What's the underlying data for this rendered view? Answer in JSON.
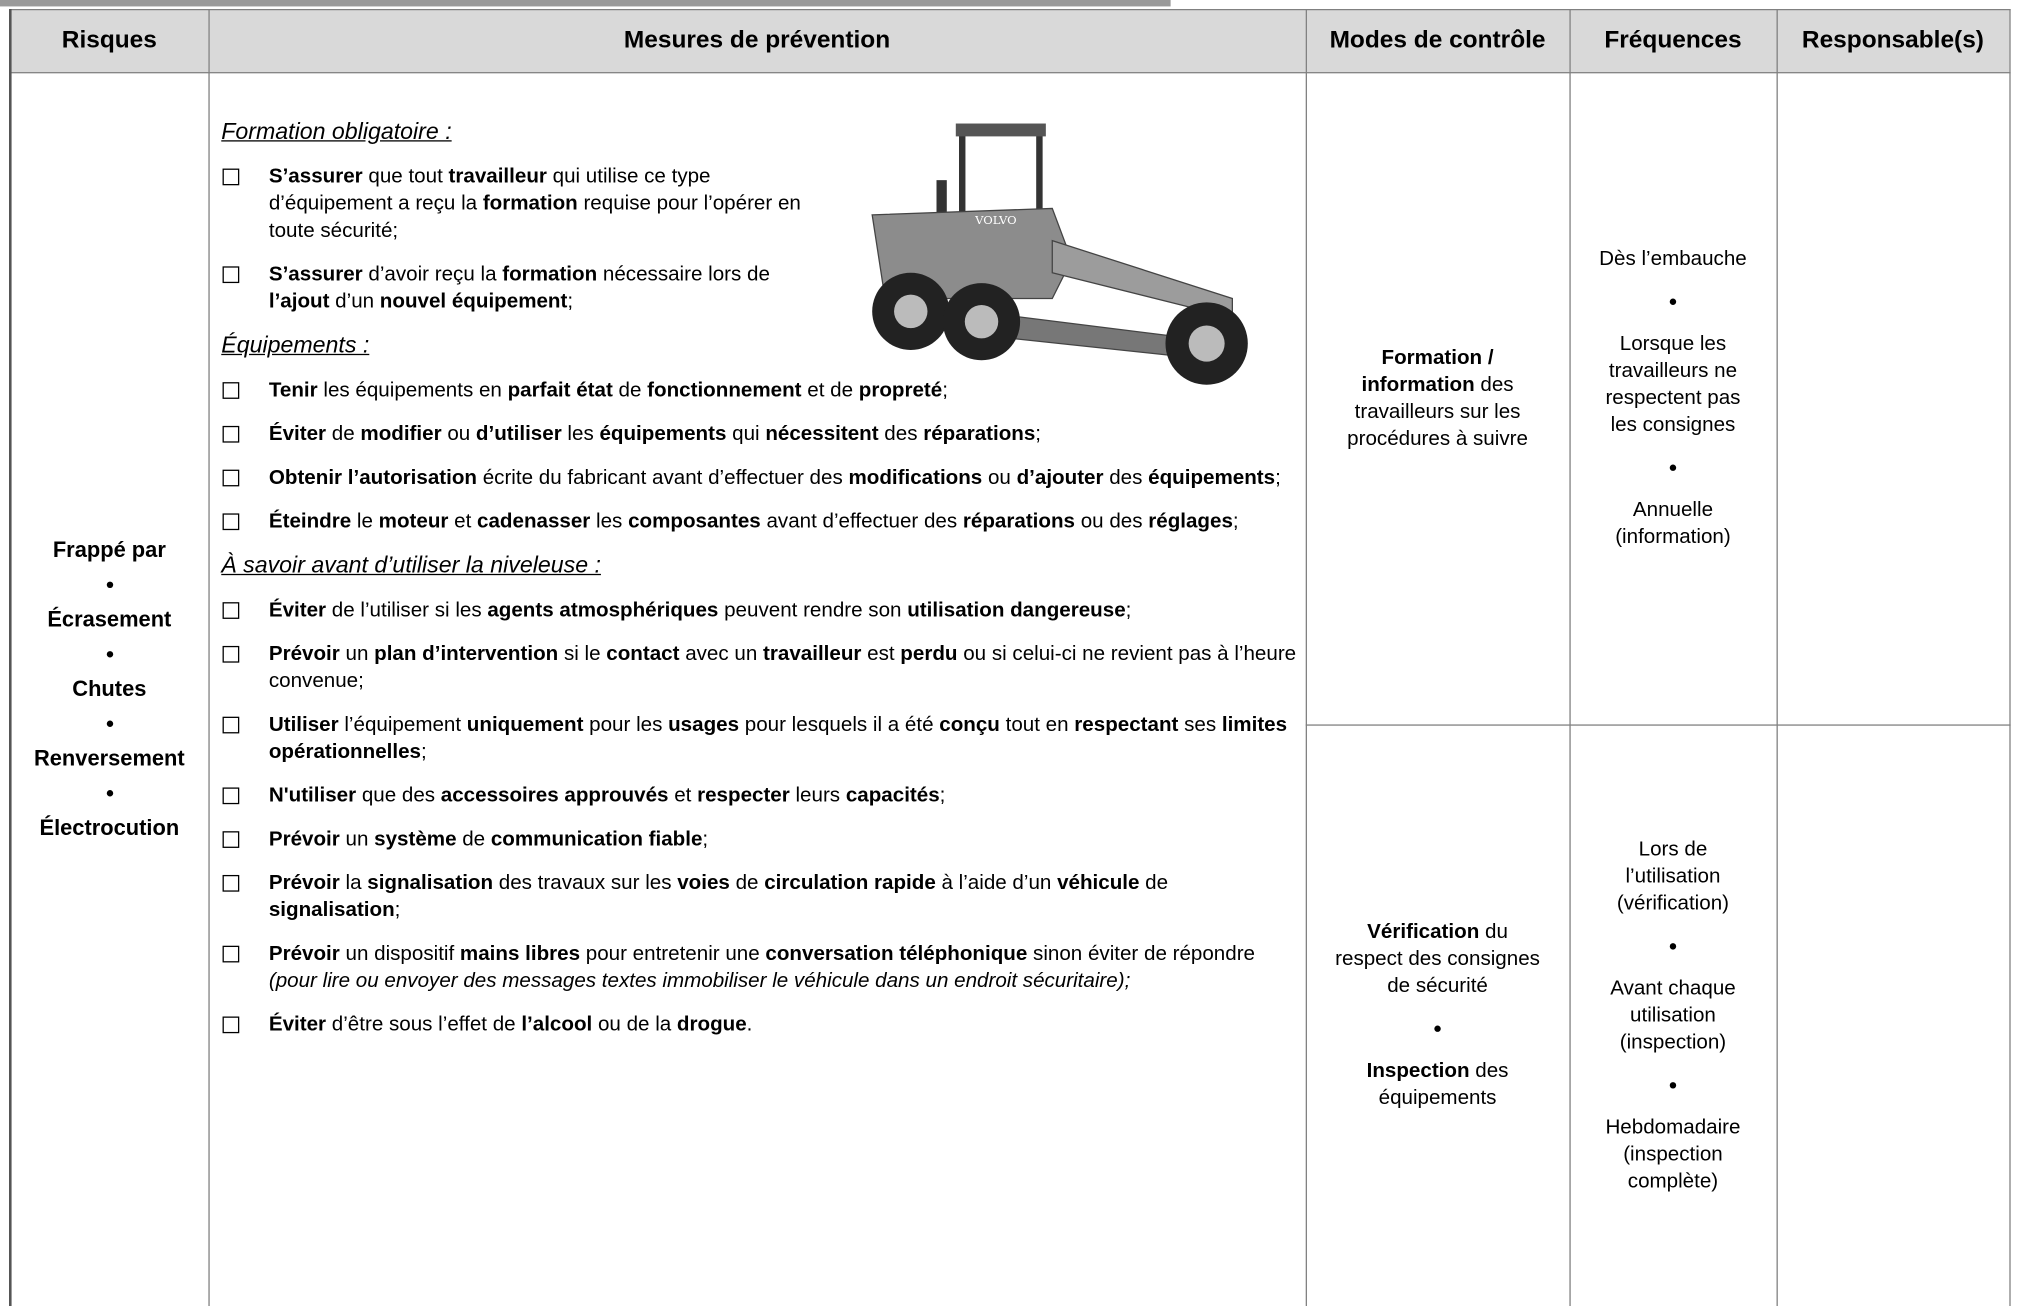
{
  "table": {
    "headers": [
      "Risques",
      "Mesures de prévention",
      "Modes de contrôle",
      "Fréquences",
      "Responsable(s)"
    ],
    "risks": [
      "Frappé par",
      "Écrasement",
      "Chutes",
      "Renversement",
      "Électrocution"
    ],
    "measures": [
      {
        "heading": "Formation obligatoire :",
        "items": [
          [
            {
              "text": "S’assurer",
              "style": "bold"
            },
            " que tout ",
            {
              "text": "travailleur",
              "style": "bold"
            },
            " qui utilise ce type d’équipement a reçu la ",
            {
              "text": "formation",
              "style": "bold"
            },
            " requise pour l’opérer en toute sécurité;"
          ],
          [
            {
              "text": "S’assurer",
              "style": "bold"
            },
            " d’avoir reçu la ",
            {
              "text": "formation",
              "style": "bold"
            },
            " nécessaire lors de ",
            {
              "text": "l’ajout",
              "style": "bold"
            },
            " d’un ",
            {
              "text": "nouvel équipement",
              "style": "bold"
            },
            ";"
          ]
        ]
      },
      {
        "heading": "Équipements :",
        "items": [
          [
            {
              "text": "Tenir",
              "style": "bold"
            },
            " les équipements en ",
            {
              "text": "parfait état",
              "style": "bold"
            },
            " de ",
            {
              "text": "fonctionnement",
              "style": "bold"
            },
            " et de ",
            {
              "text": "propreté",
              "style": "bold"
            },
            ";"
          ],
          [
            {
              "text": "Éviter",
              "style": "bold"
            },
            " de ",
            {
              "text": "modifier",
              "style": "bold"
            },
            " ou ",
            {
              "text": "d’utiliser",
              "style": "bold"
            },
            " les ",
            {
              "text": "équipements",
              "style": "bold"
            },
            " qui ",
            {
              "text": "nécessitent",
              "style": "bold"
            },
            " des ",
            {
              "text": "réparations",
              "style": "bold"
            },
            ";"
          ],
          [
            {
              "text": "Obtenir l’autorisation",
              "style": "bold"
            },
            " écrite du fabricant avant d’effectuer des ",
            {
              "text": "modifications",
              "style": "bold"
            },
            " ou ",
            {
              "text": "d’ajouter",
              "style": "bold"
            },
            " des ",
            {
              "text": "équipements",
              "style": "bold"
            },
            ";"
          ],
          [
            {
              "text": "Éteindre",
              "style": "bold"
            },
            " le ",
            {
              "text": "moteur",
              "style": "bold"
            },
            " et ",
            {
              "text": "cadenasser",
              "style": "bold"
            },
            " les ",
            {
              "text": "composantes",
              "style": "bold"
            },
            " avant d’effectuer des ",
            {
              "text": "réparations",
              "style": "bold"
            },
            " ou des ",
            {
              "text": "réglages",
              "style": "bold"
            },
            ";"
          ]
        ]
      },
      {
        "heading": "À savoir avant d’utiliser la niveleuse :",
        "items": [
          [
            {
              "text": "Éviter",
              "style": "bold"
            },
            " de l’utiliser si les ",
            {
              "text": "agents atmosphériques",
              "style": "bold"
            },
            " peuvent rendre son ",
            {
              "text": "utilisation dangereuse",
              "style": "bold"
            },
            ";"
          ],
          [
            {
              "text": "Prévoir",
              "style": "bold"
            },
            " un ",
            {
              "text": "plan d’intervention",
              "style": "bold"
            },
            " si le ",
            {
              "text": "contact",
              "style": "bold"
            },
            " avec un ",
            {
              "text": "travailleur",
              "style": "bold"
            },
            " est ",
            {
              "text": "perdu",
              "style": "bold"
            },
            " ou si celui-ci ne revient pas à l’heure convenue;"
          ],
          [
            {
              "text": "Utiliser",
              "style": "bold"
            },
            " l’équipement ",
            {
              "text": "uniquement",
              "style": "bold"
            },
            " pour les ",
            {
              "text": "usages",
              "style": "bold"
            },
            " pour lesquels il a été ",
            {
              "text": "conçu",
              "style": "bold"
            },
            " tout en ",
            {
              "text": "respectant",
              "style": "bold"
            },
            " ses ",
            {
              "text": "limites opérationnelles",
              "style": "bold"
            },
            ";"
          ],
          [
            {
              "text": "N'utiliser",
              "style": "bold"
            },
            " que des ",
            {
              "text": "accessoires approuvés",
              "style": "bold"
            },
            " et ",
            {
              "text": "respecter",
              "style": "bold"
            },
            " leurs ",
            {
              "text": "capacités",
              "style": "bold"
            },
            ";"
          ],
          [
            {
              "text": "Prévoir",
              "style": "bold"
            },
            " un ",
            {
              "text": "système",
              "style": "bold"
            },
            " de ",
            {
              "text": "communication fiable",
              "style": "bold"
            },
            ";"
          ],
          [
            {
              "text": "Prévoir",
              "style": "bold"
            },
            " la ",
            {
              "text": "signalisation",
              "style": "bold"
            },
            " des travaux sur les ",
            {
              "text": "voies",
              "style": "bold"
            },
            " de ",
            {
              "text": "circulation rapide",
              "style": "bold"
            },
            " à l’aide d’un ",
            {
              "text": "véhicule",
              "style": "bold"
            },
            " de ",
            {
              "text": "signalisation",
              "style": "bold"
            },
            ";"
          ],
          [
            {
              "text": "Prévoir",
              "style": "bold"
            },
            " un dispositif ",
            {
              "text": "mains libres",
              "style": "bold"
            },
            " pour entretenir une ",
            {
              "text": "conversation téléphonique",
              "style": "bold"
            },
            " sinon éviter de répondre ",
            {
              "text": "(pour lire ou envoyer des messages textes immobiliser le véhicule dans un endroit sécuritaire);",
              "style": "italic"
            }
          ],
          [
            {
              "text": "Éviter",
              "style": "bold"
            },
            " d’être sous l’effet de ",
            {
              "text": "l’alcool",
              "style": "bold"
            },
            " ou de la ",
            {
              "text": "drogue",
              "style": "bold"
            },
            "."
          ]
        ]
      }
    ],
    "controls": [
      {
        "modes": [
          [
            {
              "text": "Formation / information",
              "style": "bold"
            },
            " des travailleurs sur les procédures à suivre"
          ]
        ],
        "frequencies": [
          "Dès l’embauche",
          "Lorsque les travailleurs ne respectent pas les consignes",
          "Annuelle (information)"
        ]
      },
      {
        "modes": [
          [
            {
              "text": "Vérification",
              "style": "bold"
            },
            " du respect des consignes de sécurité"
          ],
          [
            {
              "text": "Inspection",
              "style": "bold"
            },
            " des équipements"
          ]
        ],
        "frequencies": [
          "Lors de l’utilisation (vérification)",
          "Avant chaque utilisation (inspection)",
          "Hebdomadaire (inspection complète)"
        ]
      }
    ]
  }
}
